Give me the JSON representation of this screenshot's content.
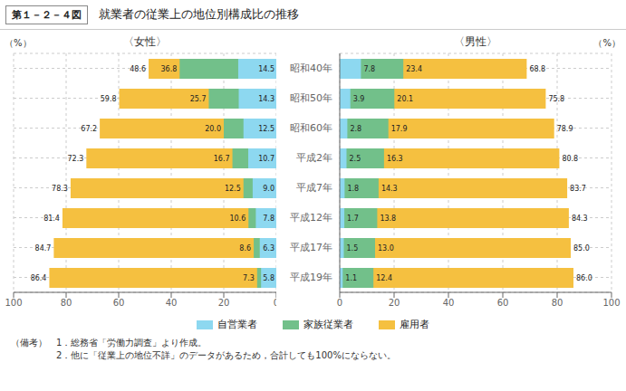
{
  "title": "就業者の従業上の地位別構成比の推移",
  "annotations": [
    "第１－２－４図",
    "（備考）　1．総務省「労働力調査」より作成。",
    "　　　　　2．他に「従業上の地位不詳」のデータがあるため，合計しても100%にならない。"
  ],
  "chart_data": [
    {
      "type": "bar",
      "title": "〈女性〉",
      "xlabel": "（%）",
      "orientation": "horizontal",
      "categories": [
        "昭和40年",
        "昭和50年",
        "昭和60年",
        "平成2年",
        "平成7年",
        "平成12年",
        "平成17年",
        "平成19年"
      ],
      "series": [
        {
          "name": "自営業者",
          "color": "#8dd8f0",
          "values": [
            14.5,
            14.3,
            12.5,
            10.7,
            9.0,
            7.8,
            6.3,
            5.8
          ],
          "value_labels": [
            "14.5",
            "14.3",
            "12.5",
            "10.7",
            "9.0",
            "7.8",
            "6.3",
            "5.8"
          ]
        },
        {
          "name": "家族従業者",
          "color": "#72c08a",
          "values": [
            36.8,
            25.7,
            20.0,
            16.7,
            12.5,
            10.6,
            8.6,
            7.3
          ],
          "value_labels": [
            "36.8",
            "25.7",
            "20.0",
            "16.7",
            "12.5",
            "10.6",
            "8.6",
            "7.3"
          ]
        },
        {
          "name": "雇用者",
          "color": "#f5c040",
          "values": [
            48.6,
            59.8,
            67.2,
            72.3,
            78.3,
            81.4,
            84.7,
            86.4
          ]
        }
      ],
      "xlim": [
        100,
        0
      ],
      "xticks": [
        0,
        20,
        40,
        60,
        80,
        100
      ],
      "grid": true,
      "data_labels": true,
      "legend": "bottom"
    },
    {
      "type": "bar",
      "title": "〈男性〉",
      "xlabel": "（%）",
      "orientation": "horizontal",
      "categories": [
        "昭和40年",
        "昭和50年",
        "昭和60年",
        "平成2年",
        "平成7年",
        "平成12年",
        "平成17年",
        "平成19年"
      ],
      "series": [
        {
          "name": "自営業者",
          "color": "#8dd8f0",
          "values": [
            7.8,
            3.9,
            2.8,
            2.5,
            1.8,
            1.7,
            1.5,
            1.1
          ]
        },
        {
          "name": "家族従業者",
          "color": "#72c08a",
          "values": [
            23.4,
            20.1,
            17.9,
            16.3,
            14.3,
            13.8,
            13.0,
            12.4
          ],
          "value_labels": [
            "23.4",
            "20.1",
            "17.9",
            "16.3",
            "14.3",
            "13.8",
            "13.0",
            "12.4"
          ]
        },
        {
          "name": "雇用者",
          "color": "#f5c040",
          "values": [
            68.8,
            75.8,
            78.9,
            80.8,
            83.7,
            84.3,
            85.0,
            86.0
          ],
          "value_labels": [
            "68.8",
            "75.8",
            "78.9",
            "80.8",
            "83.7",
            "84.3",
            "85.0",
            "86.0"
          ]
        }
      ],
      "xlim": [
        0,
        100
      ],
      "xticks": [
        0,
        20,
        40,
        60,
        80,
        100
      ],
      "grid": true,
      "data_labels": true
    }
  ]
}
